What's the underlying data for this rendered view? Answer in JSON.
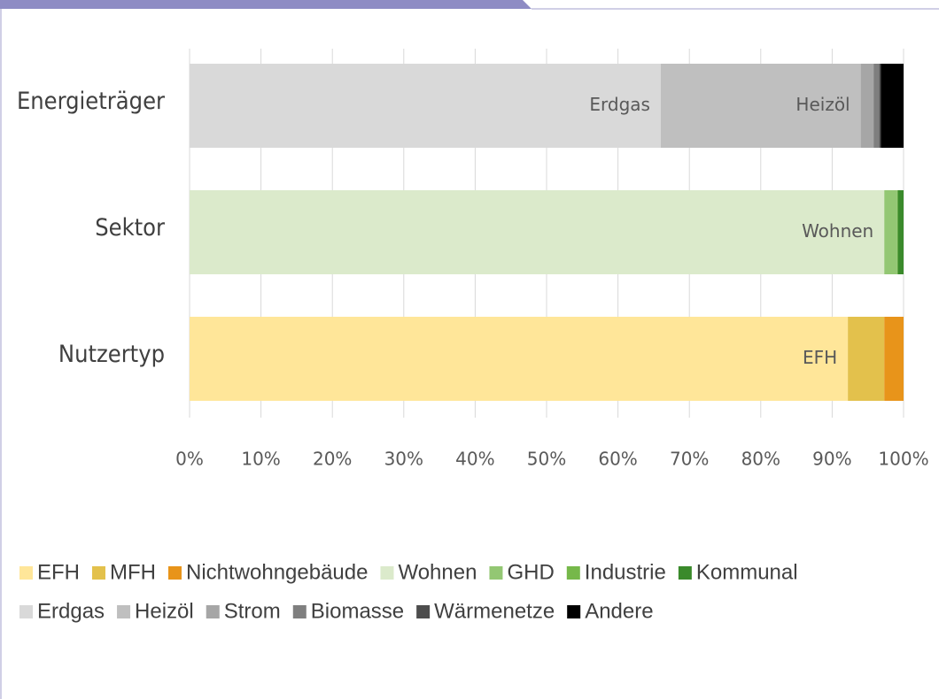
{
  "chart_data": {
    "type": "stacked_barh",
    "categories": [
      "Energieträger",
      "Sektor",
      "Nutzertyp"
    ],
    "series": [
      {
        "name": "EFH",
        "color": "#ffe699",
        "values": [
          null,
          null,
          92.2
        ],
        "show_label": true
      },
      {
        "name": "MFH",
        "color": "#e3c14c",
        "values": [
          null,
          null,
          5.1
        ]
      },
      {
        "name": "Nichtwohngebäude",
        "color": "#e8941a",
        "values": [
          null,
          null,
          2.7
        ]
      },
      {
        "name": "Wohnen",
        "color": "#dbeacb",
        "values": [
          null,
          97.3,
          null
        ],
        "show_label": true
      },
      {
        "name": "GHD",
        "color": "#93c773",
        "values": [
          null,
          1.8,
          null
        ]
      },
      {
        "name": "Industrie",
        "color": "#76b84a",
        "values": [
          null,
          0.1,
          null
        ]
      },
      {
        "name": "Kommunal",
        "color": "#3a8a2b",
        "values": [
          null,
          0.8,
          null
        ]
      },
      {
        "name": "Erdgas",
        "color": "#d9d9d9",
        "values": [
          66,
          null,
          null
        ],
        "show_label": true
      },
      {
        "name": "Heizöl",
        "color": "#bfbfbf",
        "values": [
          28,
          null,
          null
        ],
        "show_label": true
      },
      {
        "name": "Strom",
        "color": "#a6a6a6",
        "values": [
          1.8,
          null,
          null
        ]
      },
      {
        "name": "Biomasse",
        "color": "#7f7f7f",
        "values": [
          0.8,
          null,
          null
        ]
      },
      {
        "name": "Wärmenetze",
        "color": "#4d4d4d",
        "values": [
          0.2,
          null,
          null
        ]
      },
      {
        "name": "Andere",
        "color": "#000000",
        "values": [
          3.2,
          null,
          null
        ]
      }
    ],
    "xlim": [
      0,
      100
    ],
    "xticks": [
      {
        "value": 0,
        "label": "0%"
      },
      {
        "value": 10,
        "label": "10%"
      },
      {
        "value": 20,
        "label": "20%"
      },
      {
        "value": 30,
        "label": "30%"
      },
      {
        "value": 40,
        "label": "40%"
      },
      {
        "value": 50,
        "label": "50%"
      },
      {
        "value": 60,
        "label": "60%"
      },
      {
        "value": 70,
        "label": "70%"
      },
      {
        "value": 80,
        "label": "80%"
      },
      {
        "value": 90,
        "label": "90%"
      },
      {
        "value": 100,
        "label": "100%"
      }
    ],
    "grid": true
  }
}
